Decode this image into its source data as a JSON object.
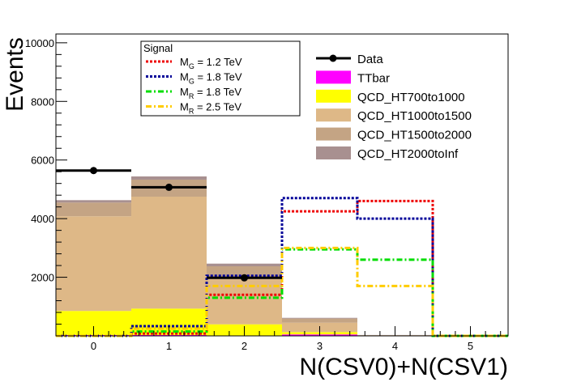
{
  "chart_data": {
    "type": "bar",
    "stacked": true,
    "xlabel": "N(CSV0)+N(CSV1)",
    "ylabel": "Events",
    "xlim": [
      -0.5,
      5.5
    ],
    "ylim": [
      0,
      10300
    ],
    "xticks": [
      0,
      1,
      2,
      3,
      4,
      5
    ],
    "yticks": [
      2000,
      4000,
      6000,
      8000,
      10000
    ],
    "bins": [
      0,
      1,
      2,
      3,
      4,
      5
    ],
    "stack": [
      {
        "name": "TTbar",
        "color": "#ff00ff",
        "values": [
          30,
          30,
          15,
          50,
          3,
          0
        ]
      },
      {
        "name": "QCD_HT700to1000",
        "color": "#ffff00",
        "values": [
          820,
          900,
          380,
          80,
          5,
          0
        ]
      },
      {
        "name": "QCD_HT1000to1500",
        "color": "#deb887",
        "values": [
          3230,
          3820,
          1580,
          320,
          12,
          0
        ]
      },
      {
        "name": "QCD_HT1500to2000",
        "color": "#c4a484",
        "values": [
          470,
          580,
          400,
          140,
          8,
          0
        ]
      },
      {
        "name": "QCD_HT2000toInf",
        "color": "#a89090",
        "values": [
          80,
          110,
          90,
          25,
          2,
          0
        ]
      }
    ],
    "data": {
      "name": "Data",
      "values": [
        5640,
        5070,
        1980,
        null,
        null,
        null
      ]
    },
    "signals_title": "Signal",
    "signals": [
      {
        "label_main": "M",
        "label_sub": "G",
        "label_rest": " = 1.2 TeV",
        "color": "#ee0000",
        "style": "dotted",
        "values": [
          0,
          80,
          1400,
          4250,
          4600,
          0
        ]
      },
      {
        "label_main": "M",
        "label_sub": "G",
        "label_rest": " = 1.8 TeV",
        "color": "#000099",
        "style": "dotted",
        "values": [
          0,
          330,
          2050,
          4700,
          4000,
          0
        ]
      },
      {
        "label_main": "M",
        "label_sub": "R",
        "label_rest": " = 1.8 TeV",
        "color": "#00dd00",
        "style": "dashdot",
        "values": [
          0,
          150,
          1300,
          2950,
          2600,
          0
        ]
      },
      {
        "label_main": "M",
        "label_sub": "R",
        "label_rest": " = 2.5 TeV",
        "color": "#ffcc00",
        "style": "dashdot",
        "values": [
          0,
          250,
          1700,
          3000,
          1700,
          0
        ]
      }
    ]
  }
}
